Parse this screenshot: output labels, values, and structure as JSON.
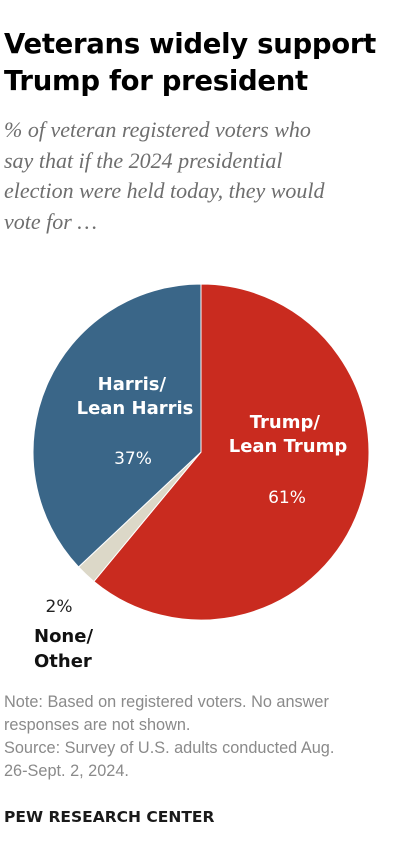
{
  "title_lines": [
    "Veterans widely support",
    "Trump for president"
  ],
  "subtitle_lines": [
    "% of veteran registered voters who",
    "say that if the 2024 presidential",
    "election were held today, they would",
    "vote for …"
  ],
  "chart_data": {
    "type": "pie",
    "slices": [
      {
        "label_lines": [
          "Trump/",
          "Lean Trump"
        ],
        "value": 61,
        "value_label": "61%",
        "color": "#c92b1f"
      },
      {
        "label_lines": [
          "None/",
          "Other"
        ],
        "value": 2,
        "value_label": "2%",
        "color": "#dcd8c8"
      },
      {
        "label_lines": [
          "Harris/",
          "Lean Harris"
        ],
        "value": 37,
        "value_label": "37%",
        "color": "#3a6688"
      }
    ]
  },
  "note_lines": [
    "Note: Based on registered voters. No answer",
    "responses are not shown.",
    "Source: Survey of U.S. adults conducted Aug.",
    "26-Sept. 2, 2024."
  ],
  "footer": "PEW RESEARCH CENTER"
}
